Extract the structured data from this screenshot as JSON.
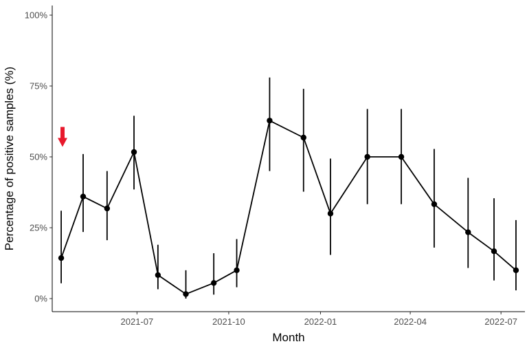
{
  "chart_data": {
    "type": "line",
    "xlabel": "Month",
    "ylabel": "Percentage of positive samples (%)",
    "x_range": [
      "2021-04-07",
      "2022-07-25"
    ],
    "ylim": [
      0,
      100
    ],
    "x_ticks": [
      {
        "date": "2021-07-01",
        "label": "2021-07"
      },
      {
        "date": "2021-10-01",
        "label": "2021-10"
      },
      {
        "date": "2022-01-01",
        "label": "2022-01"
      },
      {
        "date": "2022-04-01",
        "label": "2022-04"
      },
      {
        "date": "2022-07-01",
        "label": "2022-07"
      }
    ],
    "y_ticks": [
      {
        "value": 0,
        "label": "0%"
      },
      {
        "value": 25,
        "label": "25%"
      },
      {
        "value": 50,
        "label": "50%"
      },
      {
        "value": 75,
        "label": "75%"
      },
      {
        "value": 100,
        "label": "100%"
      }
    ],
    "series": [
      {
        "points": [
          {
            "x": "2021-04-16",
            "y": 14.3,
            "lower": 5.4,
            "upper": 31.0
          },
          {
            "x": "2021-05-08",
            "y": 36.0,
            "lower": 23.5,
            "upper": 51.0
          },
          {
            "x": "2021-06-01",
            "y": 31.8,
            "lower": 20.6,
            "upper": 45.0
          },
          {
            "x": "2021-06-28",
            "y": 51.7,
            "lower": 38.5,
            "upper": 64.5
          },
          {
            "x": "2021-07-22",
            "y": 8.3,
            "lower": 3.3,
            "upper": 19.0
          },
          {
            "x": "2021-08-19",
            "y": 1.6,
            "lower": 0.0,
            "upper": 10.0
          },
          {
            "x": "2021-09-16",
            "y": 5.5,
            "lower": 1.4,
            "upper": 16.0
          },
          {
            "x": "2021-10-09",
            "y": 10.0,
            "lower": 4.0,
            "upper": 21.0
          },
          {
            "x": "2021-11-11",
            "y": 62.8,
            "lower": 45.0,
            "upper": 78.0
          },
          {
            "x": "2021-12-15",
            "y": 56.8,
            "lower": 37.7,
            "upper": 74.0
          },
          {
            "x": "2022-01-11",
            "y": 30.0,
            "lower": 15.4,
            "upper": 49.4
          },
          {
            "x": "2022-02-17",
            "y": 50.0,
            "lower": 33.3,
            "upper": 66.9
          },
          {
            "x": "2022-03-23",
            "y": 50.0,
            "lower": 33.3,
            "upper": 66.9
          },
          {
            "x": "2022-04-25",
            "y": 33.3,
            "lower": 18.0,
            "upper": 52.8
          },
          {
            "x": "2022-05-29",
            "y": 23.4,
            "lower": 10.8,
            "upper": 42.6
          },
          {
            "x": "2022-06-24",
            "y": 16.7,
            "lower": 6.4,
            "upper": 35.4
          },
          {
            "x": "2022-07-16",
            "y": 10.0,
            "lower": 2.9,
            "upper": 27.7
          }
        ]
      }
    ],
    "grid": false,
    "annotations": [
      {
        "type": "arrow",
        "direction": "down",
        "color": "#e8192c",
        "y": 54
      }
    ]
  }
}
